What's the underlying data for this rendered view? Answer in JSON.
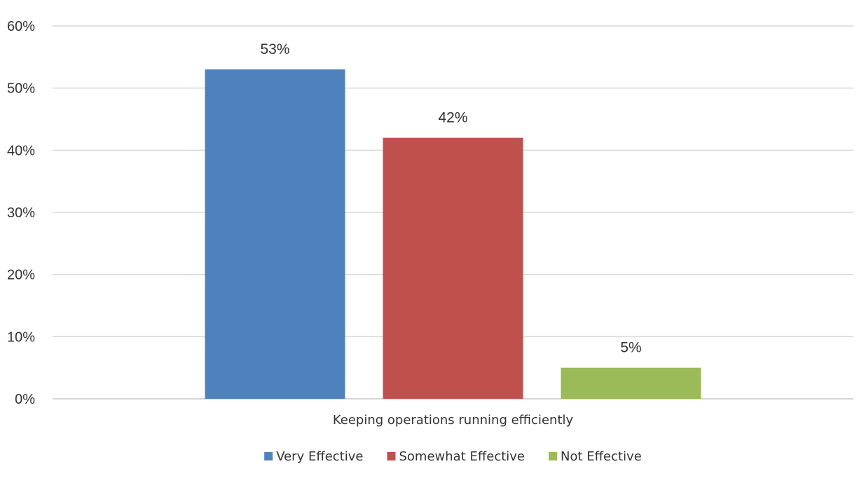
{
  "chart_data": {
    "type": "bar",
    "categories": [
      "Keeping operations running efficiently"
    ],
    "series": [
      {
        "name": "Very Effective",
        "values": [
          53
        ],
        "label": "53%",
        "color": "#4f81bd"
      },
      {
        "name": "Somewhat Effective",
        "values": [
          42
        ],
        "label": "42%",
        "color": "#c0504d"
      },
      {
        "name": "Not Effective",
        "values": [
          5
        ],
        "label": "5%",
        "color": "#9bbb59"
      }
    ],
    "title": "",
    "xlabel": "",
    "ylabel": "",
    "ylim": [
      0,
      60
    ],
    "yticks": [
      0,
      10,
      20,
      30,
      40,
      50,
      60
    ],
    "ytick_labels": [
      "0%",
      "10%",
      "20%",
      "30%",
      "40%",
      "50%",
      "60%"
    ],
    "grid": true,
    "legend_position": "bottom"
  }
}
